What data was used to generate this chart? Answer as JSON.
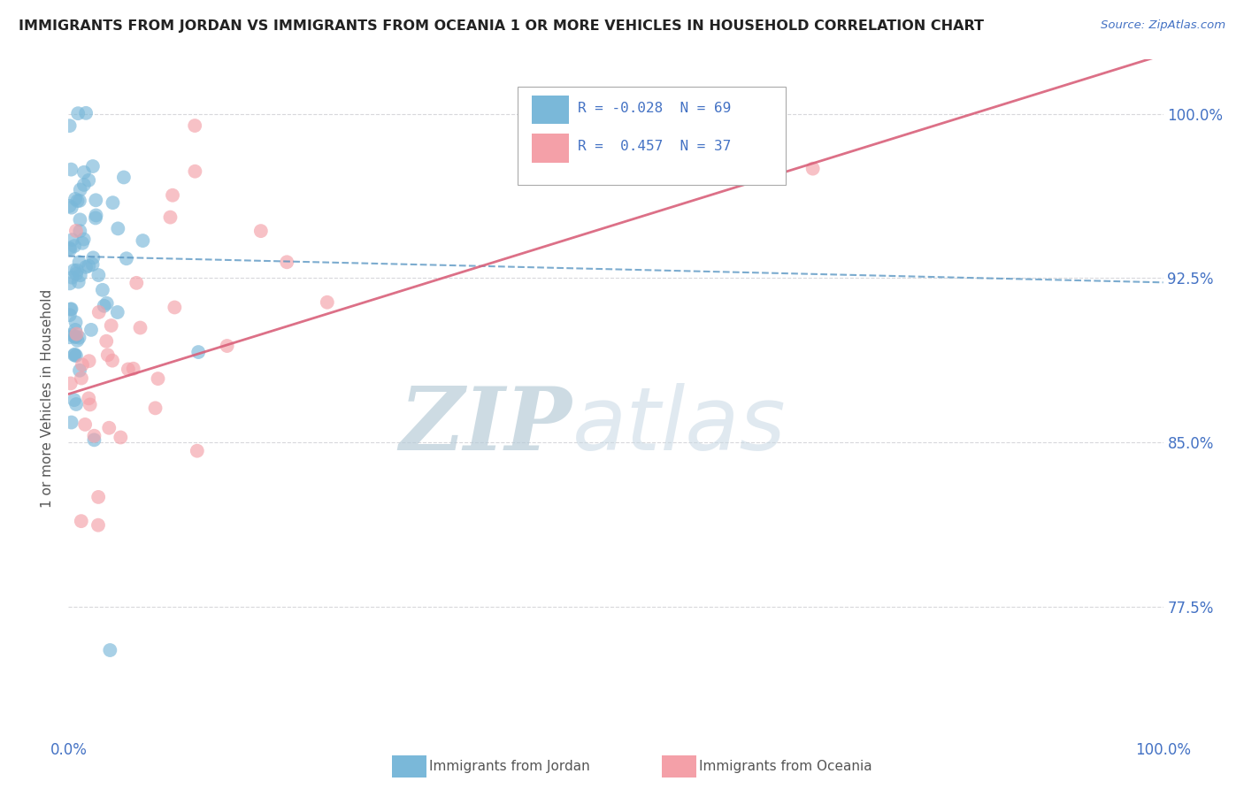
{
  "title": "IMMIGRANTS FROM JORDAN VS IMMIGRANTS FROM OCEANIA 1 OR MORE VEHICLES IN HOUSEHOLD CORRELATION CHART",
  "source": "Source: ZipAtlas.com",
  "ylabel": "1 or more Vehicles in Household",
  "xlim": [
    0.0,
    1.0
  ],
  "ylim": [
    0.715,
    1.025
  ],
  "ytick_vals": [
    0.775,
    0.85,
    0.925,
    1.0
  ],
  "ytick_labels": [
    "77.5%",
    "85.0%",
    "92.5%",
    "100.0%"
  ],
  "jordan_R": -0.028,
  "jordan_N": 69,
  "oceania_R": 0.457,
  "oceania_N": 37,
  "jordan_color": "#7ab8d9",
  "oceania_color": "#f4a0a8",
  "jordan_line_color": "#5090c0",
  "oceania_line_color": "#d9607a",
  "background_color": "#ffffff",
  "watermark_zip": "ZIP",
  "watermark_atlas": "atlas",
  "watermark_color": "#c8d8e8",
  "legend_jordan_label": "Immigrants from Jordan",
  "legend_oceania_label": "Immigrants from Oceania",
  "jordan_intercept": 0.935,
  "jordan_slope": -0.012,
  "oceania_intercept": 0.872,
  "oceania_slope": 0.155
}
